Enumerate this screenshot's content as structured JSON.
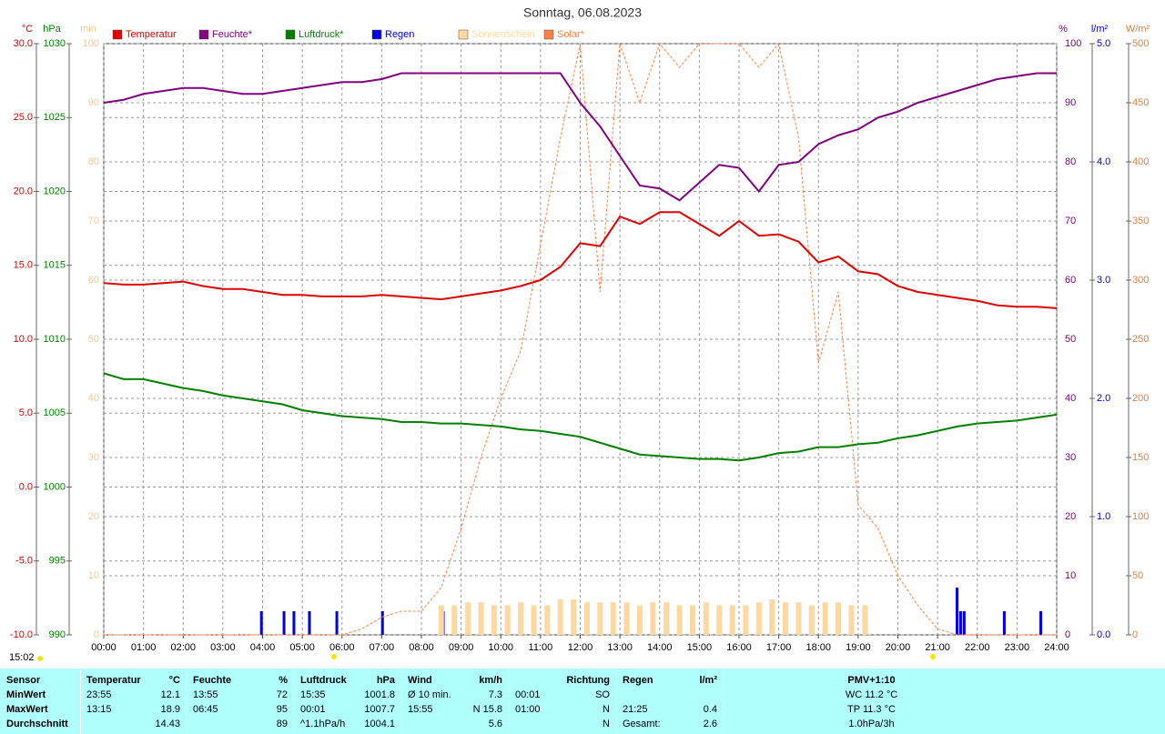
{
  "chart_data": {
    "type": "line",
    "title": "Sonntag, 06.08.2023",
    "timestamp": "15:02",
    "grid": true,
    "xlim": [
      0,
      24
    ],
    "xticks": [
      {
        "value": 0,
        "label": "00:00"
      },
      {
        "value": 1,
        "label": "01:00"
      },
      {
        "value": 2,
        "label": "02:00"
      },
      {
        "value": 3,
        "label": "03:00"
      },
      {
        "value": 4,
        "label": "04:00"
      },
      {
        "value": 5,
        "label": "05:00"
      },
      {
        "value": 6,
        "label": "06:00"
      },
      {
        "value": 7,
        "label": "07:00"
      },
      {
        "value": 8,
        "label": "08:00"
      },
      {
        "value": 9,
        "label": "09:00"
      },
      {
        "value": 10,
        "label": "10:00"
      },
      {
        "value": 11,
        "label": "11:00"
      },
      {
        "value": 12,
        "label": "12:00"
      },
      {
        "value": 13,
        "label": "13:00"
      },
      {
        "value": 14,
        "label": "14:00"
      },
      {
        "value": 15,
        "label": "15:00"
      },
      {
        "value": 16,
        "label": "16:00"
      },
      {
        "value": 17,
        "label": "17:00"
      },
      {
        "value": 18,
        "label": "18:00"
      },
      {
        "value": 19,
        "label": "19:00"
      },
      {
        "value": 20,
        "label": "20:00"
      },
      {
        "value": 21,
        "label": "21:00"
      },
      {
        "value": 22,
        "label": "22:00"
      },
      {
        "value": 23,
        "label": "23:00"
      },
      {
        "value": 24,
        "label": "24:00"
      }
    ],
    "axes": [
      {
        "unit": "°C",
        "color": "#e00000",
        "grid": true,
        "lim": [
          -10,
          30
        ],
        "ticks": [
          {
            "value": 30,
            "label": "30.0"
          },
          {
            "value": 25,
            "label": "25.0"
          },
          {
            "value": 20,
            "label": "20.0"
          },
          {
            "value": 15,
            "label": "15.0"
          },
          {
            "value": 10,
            "label": "10.0"
          },
          {
            "value": 5,
            "label": "5.0"
          },
          {
            "value": 0,
            "label": "0.0"
          },
          {
            "value": -5,
            "label": "-5.0"
          },
          {
            "value": -10,
            "label": "-10.0"
          }
        ]
      },
      {
        "unit": "hPa",
        "color": "#008000",
        "grid": false,
        "lim": [
          990,
          1030
        ],
        "ticks": [
          1030,
          1025,
          1020,
          1015,
          1010,
          1005,
          1000,
          995,
          990
        ]
      },
      {
        "unit": "min",
        "color": "#f0c890",
        "grid": false,
        "lim": [
          0,
          100
        ],
        "ticks": [
          100,
          90,
          80,
          70,
          60,
          50,
          40,
          30,
          20,
          10,
          0
        ]
      },
      {
        "unit": "%",
        "color": "#800080",
        "grid": true,
        "lim": [
          0,
          100
        ],
        "ticks": [
          100,
          90,
          80,
          70,
          60,
          50,
          40,
          30,
          20,
          10,
          0
        ]
      },
      {
        "unit": "l/m²",
        "color": "#0000e0",
        "grid": false,
        "lim": [
          0,
          5
        ],
        "ticks": [
          {
            "value": 5,
            "label": "5.0"
          },
          {
            "value": 4,
            "label": "4.0"
          },
          {
            "value": 3,
            "label": "3.0"
          },
          {
            "value": 2,
            "label": "2.0"
          },
          {
            "value": 1,
            "label": "1.0"
          },
          {
            "value": 0,
            "label": "0.0"
          }
        ]
      },
      {
        "unit": "W/m²",
        "color": "#e08040",
        "grid": false,
        "lim": [
          0,
          500
        ],
        "ticks": [
          500,
          450,
          400,
          350,
          300,
          250,
          200,
          150,
          100,
          50,
          0
        ]
      }
    ],
    "x": [
      0,
      0.5,
      1,
      1.5,
      2,
      2.5,
      3,
      3.5,
      4,
      4.5,
      5,
      5.5,
      6,
      6.5,
      7,
      7.5,
      8,
      8.5,
      9,
      9.5,
      10,
      10.5,
      11,
      11.5,
      12,
      12.5,
      13,
      13.5,
      14,
      14.5,
      15,
      15.5,
      16,
      16.5,
      17,
      17.5,
      18,
      18.5,
      19,
      19.5,
      20,
      20.5,
      21,
      21.5,
      22,
      22.5,
      23,
      23.5,
      24
    ],
    "series": [
      {
        "name": "Temperatur",
        "color": "#e00000",
        "axis": 0,
        "style": "line",
        "values": [
          13.8,
          13.7,
          13.7,
          13.8,
          13.9,
          13.6,
          13.4,
          13.4,
          13.2,
          13.0,
          13.0,
          12.9,
          12.9,
          12.9,
          13.0,
          12.9,
          12.8,
          12.7,
          12.9,
          13.1,
          13.3,
          13.6,
          14.0,
          14.9,
          16.5,
          16.3,
          18.3,
          17.8,
          18.6,
          18.6,
          17.8,
          17.0,
          18.0,
          17.0,
          17.1,
          16.6,
          15.2,
          15.6,
          14.6,
          14.4,
          13.6,
          13.2,
          13.0,
          12.8,
          12.6,
          12.3,
          12.2,
          12.2,
          12.1
        ]
      },
      {
        "name": "Feuchte*",
        "color": "#800080",
        "axis": 3,
        "style": "line",
        "values": [
          90,
          90.5,
          91.5,
          92,
          92.5,
          92.5,
          92,
          91.5,
          91.5,
          92,
          92.5,
          93,
          93.5,
          93.5,
          94,
          95,
          95,
          95,
          95,
          95,
          95,
          95,
          95,
          95,
          90,
          86,
          81,
          76,
          75.5,
          73.5,
          76.5,
          79.5,
          79,
          75,
          79.5,
          80,
          83,
          84.5,
          85.5,
          87.5,
          88.5,
          90,
          91,
          92,
          93,
          94,
          94.5,
          95,
          95
        ]
      },
      {
        "name": "Luftdruck*",
        "color": "#008000",
        "axis": 1,
        "style": "line",
        "values": [
          1007.7,
          1007.3,
          1007.3,
          1007.0,
          1006.7,
          1006.5,
          1006.2,
          1006.0,
          1005.8,
          1005.6,
          1005.2,
          1005.0,
          1004.8,
          1004.7,
          1004.6,
          1004.4,
          1004.4,
          1004.3,
          1004.3,
          1004.2,
          1004.1,
          1003.9,
          1003.8,
          1003.6,
          1003.4,
          1003.0,
          1002.6,
          1002.2,
          1002.1,
          1002.0,
          1001.9,
          1001.9,
          1001.8,
          1002.0,
          1002.3,
          1002.4,
          1002.7,
          1002.7,
          1002.9,
          1003.0,
          1003.3,
          1003.5,
          1003.8,
          1004.1,
          1004.3,
          1004.4,
          1004.5,
          1004.7,
          1004.9
        ]
      },
      {
        "name": "Regen",
        "color": "#0000e0",
        "axis": 4,
        "style": "bar",
        "x": [
          3.97,
          4.54,
          4.79,
          5.18,
          5.87,
          7.02,
          8.55,
          21.49,
          21.58,
          21.67,
          22.68,
          23.6
        ],
        "values": [
          0.2,
          0.2,
          0.2,
          0.2,
          0.2,
          0.2,
          0.2,
          0.4,
          0.2,
          0.2,
          0.2,
          0.2
        ]
      },
      {
        "name": "Sonnenschein",
        "color": "#ffd8a0",
        "axis": 2,
        "style": "bar",
        "x": [
          8.5,
          8.83,
          9.17,
          9.5,
          9.83,
          10.17,
          10.5,
          10.83,
          11.17,
          11.5,
          11.83,
          12.17,
          12.5,
          12.83,
          13.17,
          13.5,
          13.83,
          14.17,
          14.5,
          14.83,
          15.17,
          15.5,
          15.83,
          16.17,
          16.5,
          16.83,
          17.17,
          17.5,
          17.83,
          18.17,
          18.5,
          18.83,
          19.17
        ],
        "values": [
          5,
          5,
          5.5,
          5.5,
          5,
          5,
          5.5,
          5,
          5,
          6,
          6,
          5.5,
          5.5,
          5.5,
          5.5,
          5,
          5.5,
          5.5,
          5,
          5,
          5.5,
          5,
          5,
          5,
          5.5,
          6,
          5.5,
          5.5,
          5,
          5.5,
          5.5,
          5,
          5
        ]
      },
      {
        "name": "Solar*",
        "color": "#ff8040",
        "axis": 5,
        "style": "dashed",
        "values": [
          0,
          0,
          0,
          0,
          0,
          0,
          0,
          0,
          0,
          0,
          0,
          0,
          0,
          5,
          15,
          20,
          20,
          40,
          90,
          150,
          200,
          240,
          330,
          420,
          500,
          290,
          500,
          450,
          500,
          480,
          500,
          500,
          500,
          480,
          500,
          420,
          230,
          290,
          110,
          90,
          50,
          25,
          5,
          0,
          0,
          0,
          0,
          0,
          0
        ]
      }
    ]
  },
  "summary": {
    "headers": [
      [
        "Sensor"
      ],
      [
        "Temperatur",
        "°C"
      ],
      [
        "Feuchte",
        "%"
      ],
      [
        "Luftdruck",
        "hPa"
      ],
      [
        "Wind",
        "km/h"
      ],
      [
        "Richtung"
      ],
      [
        "Regen",
        "l/m²"
      ],
      [
        "PMV+1:10"
      ]
    ],
    "rows": [
      {
        "label": "MinWert",
        "cells": [
          [
            "23:55",
            "12.1"
          ],
          [
            "13:55",
            "72"
          ],
          [
            "15:35",
            "1001.8"
          ],
          [
            "Ø 10 min.",
            "7.3"
          ],
          [
            "00:01",
            "SO"
          ],
          [],
          [
            "WC 11.2 °C"
          ]
        ]
      },
      {
        "label": "MaxWert",
        "cells": [
          [
            "13:15",
            "18.9"
          ],
          [
            "06:45",
            "95"
          ],
          [
            "00:01",
            "1007.7"
          ],
          [
            "15:55",
            "N 15.8"
          ],
          [
            "01:00",
            "N"
          ],
          [
            "21:25",
            "0.4"
          ],
          [
            "TP 11.3 °C"
          ]
        ]
      },
      {
        "label": "Durchschnitt",
        "cells": [
          [
            "14.43"
          ],
          [
            "89"
          ],
          [
            "^1.1hPa/h",
            "1004.1"
          ],
          [
            "5.6"
          ],
          [
            "N"
          ],
          [
            "Gesamt:",
            "2.6"
          ],
          [
            "1.0hPa/3h"
          ]
        ]
      }
    ]
  }
}
